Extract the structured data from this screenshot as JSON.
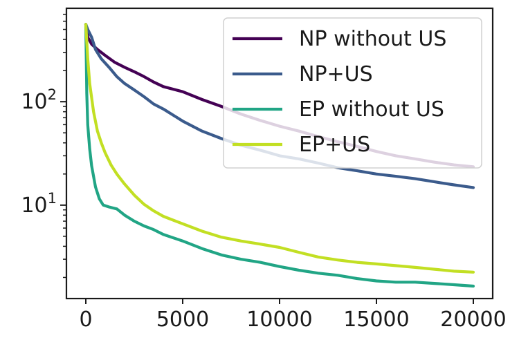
{
  "chart_data": {
    "type": "line",
    "title": "",
    "xlabel": "",
    "ylabel": "",
    "x_scale": "linear",
    "y_scale": "log",
    "xlim": [
      -1000,
      21000
    ],
    "ylim": [
      1.25,
      800
    ],
    "x_ticks": [
      {
        "value": 0,
        "label": "0"
      },
      {
        "value": 5000,
        "label": "5000"
      },
      {
        "value": 10000,
        "label": "10000"
      },
      {
        "value": 15000,
        "label": "15000"
      },
      {
        "value": 20000,
        "label": "20000"
      }
    ],
    "y_major_ticks": [
      {
        "value": 10,
        "base": "10",
        "exponent": "1"
      },
      {
        "value": 100,
        "base": "10",
        "exponent": "2"
      }
    ],
    "y_minor_ticks": [
      2,
      3,
      4,
      5,
      6,
      7,
      8,
      9,
      20,
      30,
      40,
      50,
      60,
      70,
      80,
      90,
      200,
      300,
      400,
      500,
      600,
      700
    ],
    "grid": false,
    "legend_position": "top-right",
    "series": [
      {
        "name": "NP without US",
        "color": "#440154",
        "x": [
          0,
          100,
          300,
          600,
          1000,
          1500,
          2000,
          2500,
          3000,
          3500,
          4000,
          5000,
          6000,
          7000,
          8000,
          9000,
          10000,
          11000,
          12000,
          13000,
          14000,
          15000,
          16000,
          17000,
          18000,
          19000,
          20000
        ],
        "y": [
          560,
          420,
          360,
          320,
          280,
          240,
          215,
          195,
          175,
          155,
          140,
          125,
          105,
          90,
          76,
          66,
          58,
          52,
          46,
          41,
          37,
          33,
          30,
          28,
          26,
          24.5,
          23.5
        ]
      },
      {
        "name": "NP+US",
        "color": "#3b5b8c",
        "x": [
          0,
          100,
          300,
          500,
          800,
          1200,
          1600,
          2000,
          2500,
          3000,
          3500,
          4000,
          5000,
          6000,
          7000,
          8000,
          9000,
          10000,
          11000,
          12000,
          13000,
          14000,
          15000,
          16000,
          17000,
          18000,
          19000,
          20000
        ],
        "y": [
          560,
          500,
          420,
          320,
          260,
          215,
          175,
          150,
          130,
          112,
          95,
          85,
          65,
          52,
          44,
          38,
          34,
          30,
          28,
          25.5,
          23,
          21.5,
          20,
          19,
          18,
          16.8,
          15.7,
          14.8
        ]
      },
      {
        "name": "EP without US",
        "color": "#21a585",
        "x": [
          0,
          50,
          100,
          200,
          300,
          500,
          700,
          900,
          1200,
          1600,
          2000,
          2500,
          3000,
          3500,
          4000,
          5000,
          6000,
          7000,
          8000,
          9000,
          10000,
          11000,
          12000,
          13000,
          14000,
          15000,
          16000,
          17000,
          18000,
          19000,
          20000
        ],
        "y": [
          560,
          120,
          60,
          35,
          24,
          15,
          11.5,
          10,
          9.6,
          9.2,
          8,
          7,
          6.3,
          5.8,
          5.2,
          4.5,
          3.8,
          3.3,
          3.0,
          2.8,
          2.55,
          2.35,
          2.2,
          2.1,
          1.95,
          1.85,
          1.8,
          1.8,
          1.75,
          1.7,
          1.65
        ]
      },
      {
        "name": "EP+US",
        "color": "#c2df23",
        "x": [
          0,
          100,
          200,
          400,
          600,
          800,
          1000,
          1300,
          1600,
          2000,
          2500,
          3000,
          3500,
          4000,
          5000,
          6000,
          7000,
          8000,
          9000,
          10000,
          11000,
          12000,
          13000,
          14000,
          15000,
          16000,
          17000,
          18000,
          19000,
          20000
        ],
        "y": [
          560,
          260,
          150,
          80,
          52,
          40,
          32,
          24.5,
          20,
          16,
          12.5,
          10.2,
          8.8,
          7.8,
          6.6,
          5.6,
          4.9,
          4.5,
          4.2,
          3.9,
          3.5,
          3.15,
          2.95,
          2.8,
          2.7,
          2.6,
          2.5,
          2.4,
          2.3,
          2.25
        ]
      }
    ]
  }
}
